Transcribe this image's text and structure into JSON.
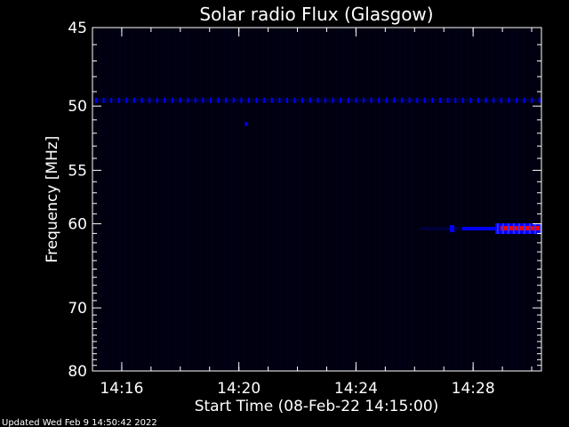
{
  "chart_data": {
    "type": "heatmap",
    "title": "Solar radio Flux (Glasgow)",
    "xlabel": "Start Time (08-Feb-22 14:15:00)",
    "ylabel": "Frequency [MHz]",
    "x_range": [
      "14:15:00",
      "14:30:20"
    ],
    "y_range": [
      45,
      80
    ],
    "x_ticks": [
      "14:16",
      "14:20",
      "14:24",
      "14:28"
    ],
    "y_ticks": [
      "45",
      "50",
      "55",
      "60",
      "70",
      "80"
    ],
    "y_scale": "reciprocal",
    "colors": {
      "background": "#000000",
      "low": "#00003a",
      "mid": "#0000ff",
      "high": "#ff0000"
    },
    "features": [
      {
        "name": "interference line",
        "frequency_mhz": 49.6,
        "time_start": "14:15:00",
        "time_end": "14:30:20",
        "level": "medium"
      },
      {
        "name": "emission band",
        "frequency_mhz": 60.5,
        "time_start": "14:26:10",
        "time_end": "14:30:20",
        "level": "high"
      },
      {
        "name": "spot",
        "frequency_mhz": 51.3,
        "time": "14:20:15",
        "level": "medium"
      }
    ]
  },
  "footer": {
    "updated": "Updated Wed Feb  9 14:50:42 2022"
  }
}
